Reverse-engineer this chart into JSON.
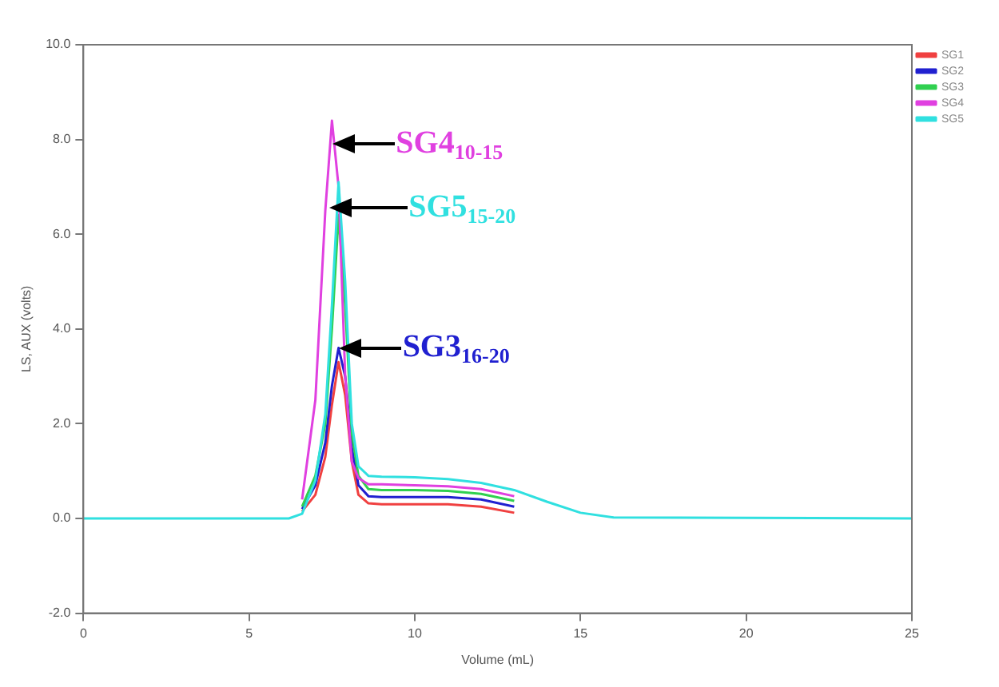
{
  "chart_data": {
    "type": "line",
    "xlabel": "Volume (mL)",
    "ylabel": "LS, AUX (volts)",
    "x": [
      0,
      6.2,
      6.6,
      7.0,
      7.3,
      7.5,
      7.7,
      7.9,
      8.1,
      8.3,
      8.6,
      9,
      10,
      11,
      12,
      13,
      14,
      15,
      16,
      25
    ],
    "series": [
      {
        "name": "SG1",
        "color": "#f04040",
        "values": [
          null,
          null,
          0.15,
          0.5,
          1.3,
          2.4,
          3.3,
          2.6,
          1.2,
          0.5,
          0.32,
          0.3,
          0.3,
          0.3,
          0.25,
          0.12,
          null,
          null,
          null,
          null
        ]
      },
      {
        "name": "SG2",
        "color": "#2020d0",
        "values": [
          null,
          null,
          0.2,
          0.7,
          1.6,
          2.8,
          3.6,
          3,
          1.5,
          0.7,
          0.47,
          0.45,
          0.45,
          0.45,
          0.4,
          0.25,
          null,
          null,
          null,
          null
        ]
      },
      {
        "name": "SG3",
        "color": "#30d050",
        "values": [
          null,
          null,
          0.25,
          0.9,
          2,
          4,
          6.4,
          4.5,
          1.8,
          0.9,
          0.62,
          0.6,
          0.6,
          0.58,
          0.52,
          0.37,
          null,
          null,
          null,
          null
        ]
      },
      {
        "name": "SG4",
        "color": "#e040e0",
        "values": [
          null,
          null,
          0.4,
          2.5,
          6.5,
          8.4,
          7,
          3,
          1.2,
          0.85,
          0.72,
          0.72,
          0.7,
          0.68,
          0.62,
          0.47,
          null,
          null,
          null,
          null
        ]
      },
      {
        "name": "SG5",
        "color": "#30e0e0",
        "values": [
          0,
          0,
          0.1,
          0.8,
          2.2,
          4.5,
          7.1,
          5,
          2,
          1.1,
          0.9,
          0.88,
          0.87,
          0.83,
          0.75,
          0.6,
          0.35,
          0.12,
          0.02,
          0
        ]
      }
    ],
    "xlim": [
      0,
      25
    ],
    "xticks": [
      0,
      5,
      10,
      15,
      20,
      25
    ],
    "ylim": [
      -2,
      10
    ],
    "yticks": [
      {
        "value": -2,
        "label": "-2.0"
      },
      {
        "value": 0,
        "label": "0.0"
      },
      {
        "value": 2,
        "label": "2.0"
      },
      {
        "value": 4,
        "label": "4.0"
      },
      {
        "value": 6,
        "label": "6.0"
      },
      {
        "value": 8,
        "label": "8.0"
      },
      {
        "value": 10,
        "label": "10.0"
      }
    ],
    "grid": false,
    "legend": "top right",
    "marker": "none",
    "line_style": "solid",
    "annotations": [
      {
        "text": "SG4$_{10-15}$",
        "x": 7.5,
        "y": 7.9
      },
      {
        "text": "SG5$_{15-20}$",
        "x": 7.4,
        "y": 6.55
      },
      {
        "text": "SG3$_{16-20}$",
        "x": 7.7,
        "y": 3.6
      }
    ]
  }
}
